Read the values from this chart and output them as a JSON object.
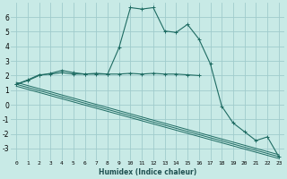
{
  "xlabel": "Humidex (Indice chaleur)",
  "background_color": "#c8eae6",
  "grid_color": "#a0cccc",
  "line_color": "#1e6b62",
  "xlim": [
    -0.5,
    23.5
  ],
  "ylim": [
    -3.8,
    7.0
  ],
  "yticks": [
    -3,
    -2,
    -1,
    0,
    1,
    2,
    3,
    4,
    5,
    6
  ],
  "xticks": [
    0,
    1,
    2,
    3,
    4,
    5,
    6,
    7,
    8,
    9,
    10,
    11,
    12,
    13,
    14,
    15,
    16,
    17,
    18,
    19,
    20,
    21,
    22,
    23
  ],
  "line1_x": [
    0,
    1,
    2,
    3,
    4,
    5,
    6,
    7,
    8,
    9,
    10,
    11,
    12,
    13,
    14,
    15,
    16,
    17,
    18,
    19,
    20,
    21,
    22,
    23
  ],
  "line1_y": [
    1.4,
    1.7,
    2.05,
    2.1,
    2.2,
    2.1,
    2.1,
    2.1,
    2.1,
    3.9,
    6.65,
    6.55,
    6.65,
    5.05,
    4.95,
    5.5,
    4.5,
    2.8,
    -0.1,
    -1.25,
    -1.85,
    -2.45,
    -2.2,
    -3.55
  ],
  "line2_x": [
    0,
    1,
    2,
    3,
    4,
    5,
    6,
    7,
    8,
    9,
    10,
    11,
    12,
    13,
    14,
    15,
    16
  ],
  "line2_y": [
    1.4,
    1.65,
    2.0,
    2.15,
    2.35,
    2.2,
    2.1,
    2.15,
    2.1,
    2.1,
    2.15,
    2.1,
    2.15,
    2.1,
    2.1,
    2.05,
    2.0
  ],
  "diag_x0": 0,
  "diag_y0": 1.4,
  "diag_x1": 23,
  "diag_y1": -3.55,
  "diag_offsets": [
    0,
    0.13,
    -0.13
  ]
}
